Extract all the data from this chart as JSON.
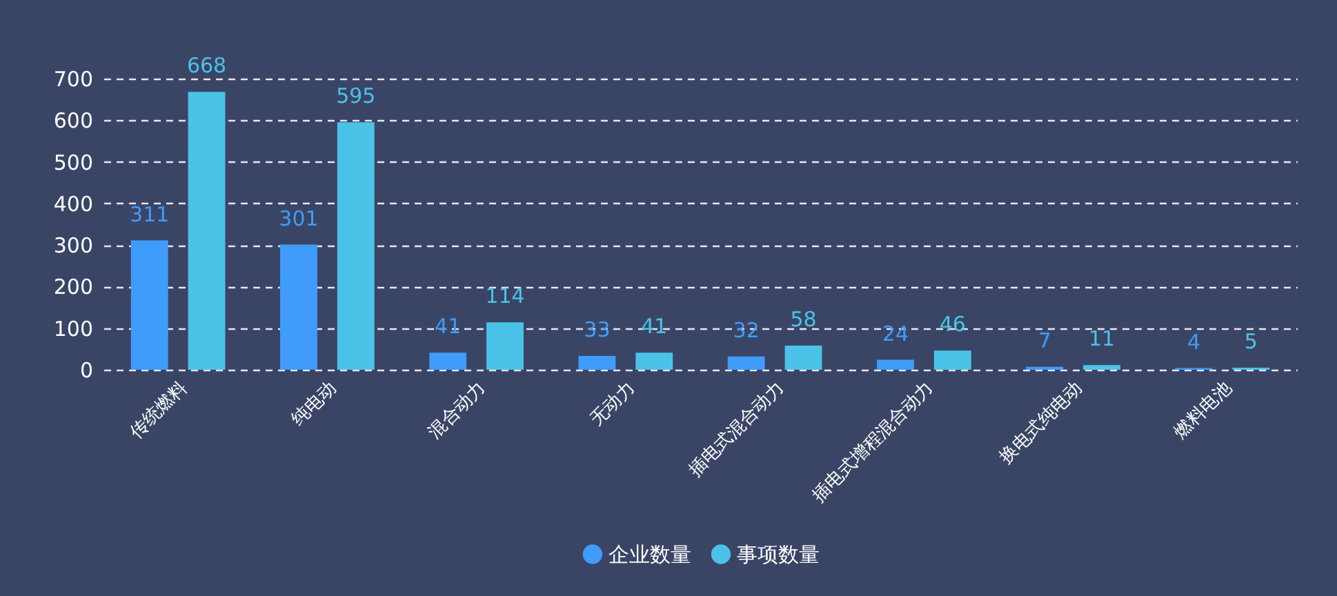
{
  "chart_data": {
    "type": "bar",
    "categories": [
      "传统燃料",
      "纯电动",
      "混合动力",
      "无动力",
      "插电式混合动力",
      "插电式增程混合动力",
      "换电式纯电动",
      "燃料电池"
    ],
    "series": [
      {
        "name": "企业数量",
        "color": "#3f9cfb",
        "values": [
          311,
          301,
          41,
          33,
          32,
          24,
          7,
          4
        ]
      },
      {
        "name": "事项数量",
        "color": "#4bc3e8",
        "values": [
          668,
          595,
          114,
          41,
          58,
          46,
          11,
          5
        ]
      }
    ],
    "ylim": [
      0,
      700
    ],
    "yticks": [
      0,
      100,
      200,
      300,
      400,
      500,
      600,
      700
    ],
    "grid": "y",
    "legend": "bottom",
    "data_labels": true
  }
}
